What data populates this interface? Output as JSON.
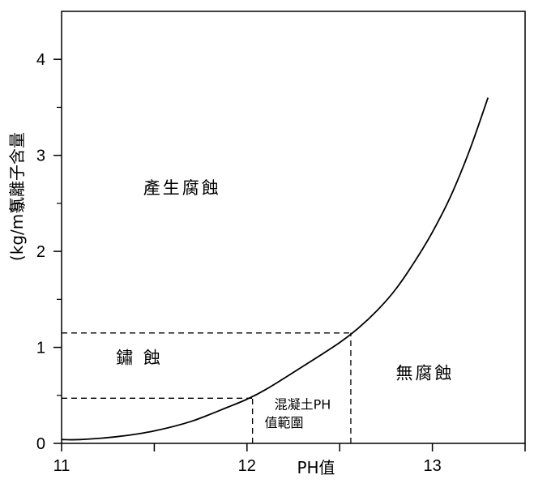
{
  "chart_data": {
    "type": "line",
    "xlabel": "PH值",
    "ylabel_lines": [
      "氯離子含量",
      "(kg/m³)"
    ],
    "xlim": [
      11,
      13.5
    ],
    "ylim": [
      0,
      4.5
    ],
    "x_ticks": [
      11,
      12,
      13
    ],
    "x_minor_ticks": [
      11.5,
      12.5,
      13.5
    ],
    "y_ticks": [
      0,
      1,
      2,
      3,
      4
    ],
    "grid": false,
    "series": [
      {
        "x": [
          11.0,
          11.1,
          11.3,
          11.5,
          11.7,
          11.9,
          12.0,
          12.1,
          12.3,
          12.5,
          12.6,
          12.7,
          12.8,
          12.9,
          13.0,
          13.1,
          13.2,
          13.3
        ],
        "values": [
          0.04,
          0.04,
          0.07,
          0.13,
          0.23,
          0.38,
          0.46,
          0.56,
          0.8,
          1.05,
          1.2,
          1.38,
          1.6,
          1.88,
          2.2,
          2.58,
          3.05,
          3.6
        ]
      }
    ],
    "reference_lines": [
      {
        "y": 1.15,
        "x_start": 11,
        "x_end": 12.56
      },
      {
        "y": 0.47,
        "x_start": 11,
        "x_end": 12.03
      },
      {
        "x": 12.03,
        "y_start": 0,
        "y_end": 0.47
      },
      {
        "x": 12.56,
        "y_start": 0,
        "y_end": 1.15
      }
    ],
    "annotations": [
      {
        "text": "產生腐蝕",
        "x": 11.65,
        "y": 2.6
      },
      {
        "text": "鏽 蝕",
        "x": 11.42,
        "y": 0.83
      },
      {
        "text": "無腐蝕",
        "x": 12.96,
        "y": 0.67
      },
      {
        "text": "混凝土PH",
        "x": 12.3,
        "y": 0.36
      },
      {
        "text": "值範圍",
        "x": 12.2,
        "y": 0.17
      }
    ]
  }
}
